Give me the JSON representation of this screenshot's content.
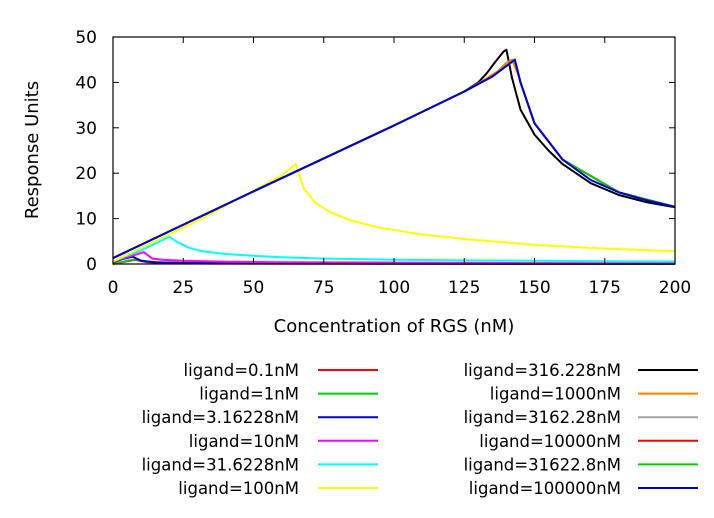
{
  "chart_data": {
    "type": "line",
    "xlabel": "Concentration of RGS (nM)",
    "ylabel": "Response Units",
    "xlim": [
      0,
      200
    ],
    "ylim": [
      0,
      50
    ],
    "xticks": [
      "0",
      "25",
      "50",
      "75",
      "100",
      "125",
      "150",
      "175",
      "200"
    ],
    "yticks": [
      "0",
      "10",
      "20",
      "30",
      "40",
      "50"
    ],
    "grid": false,
    "legend_position": "bottom, two columns",
    "series": [
      {
        "name": "ligand=0.1nM",
        "color": "#ff0000",
        "x": [
          0,
          5,
          8,
          12,
          20,
          30,
          50,
          100,
          150,
          200
        ],
        "y": [
          0,
          0.6,
          0.9,
          0.4,
          0.2,
          0.12,
          0.08,
          0.04,
          0.03,
          0.02
        ]
      },
      {
        "name": "ligand=1nM",
        "color": "#00d000",
        "x": [
          0,
          5,
          8,
          12,
          20,
          30,
          50,
          100,
          150,
          200
        ],
        "y": [
          0,
          0.7,
          1.0,
          0.5,
          0.25,
          0.15,
          0.1,
          0.05,
          0.03,
          0.03
        ]
      },
      {
        "name": "ligand=3.16228nM",
        "color": "#0000cc",
        "x": [
          0,
          4,
          7,
          10,
          15,
          25,
          50,
          100,
          150,
          200
        ],
        "y": [
          0.4,
          1.2,
          1.6,
          0.7,
          0.4,
          0.25,
          0.15,
          0.08,
          0.05,
          0.04
        ]
      },
      {
        "name": "ligand=10nM",
        "color": "#ff00ff",
        "x": [
          0,
          5,
          11,
          14,
          18,
          25,
          40,
          60,
          100,
          150,
          200
        ],
        "y": [
          0.5,
          1.5,
          2.6,
          1.2,
          0.9,
          0.7,
          0.5,
          0.4,
          0.3,
          0.2,
          0.15
        ]
      },
      {
        "name": "ligand=31.6228nM",
        "color": "#00ffff",
        "x": [
          0,
          10,
          20,
          23,
          27,
          32,
          40,
          50,
          60,
          75,
          100,
          125,
          150,
          175,
          200
        ],
        "y": [
          0.6,
          3.0,
          6.0,
          4.8,
          3.6,
          2.8,
          2.2,
          1.8,
          1.5,
          1.2,
          0.95,
          0.8,
          0.7,
          0.6,
          0.55
        ]
      },
      {
        "name": "ligand=100nM",
        "color": "#ffff00",
        "x": [
          0,
          30,
          60,
          65,
          68,
          72,
          77,
          85,
          95,
          110,
          125,
          150,
          175,
          200
        ],
        "y": [
          0.6,
          9.5,
          19.5,
          22.0,
          16.5,
          13.5,
          11.5,
          9.5,
          8.0,
          6.5,
          5.5,
          4.2,
          3.4,
          2.8
        ]
      },
      {
        "name": "ligand=316.228nM",
        "color": "#000000",
        "x": [
          0,
          50,
          100,
          125,
          130,
          133,
          136,
          139,
          140,
          142,
          145,
          150,
          155,
          160,
          170,
          180,
          190,
          200
        ],
        "y": [
          1.3,
          16.0,
          30.5,
          38.0,
          40.0,
          42.0,
          44.5,
          46.8,
          47.2,
          41.0,
          34.0,
          28.5,
          25.0,
          22.0,
          17.8,
          15.2,
          13.6,
          12.5
        ]
      },
      {
        "name": "ligand=1000nM",
        "color": "#ff7f00",
        "x": [
          0,
          50,
          100,
          125,
          132,
          137,
          140,
          142,
          144,
          150,
          160,
          180,
          200
        ],
        "y": [
          1.3,
          16.0,
          30.5,
          38.0,
          40.5,
          42.5,
          44.3,
          45.0,
          42.0,
          31.0,
          23.0,
          15.8,
          12.6
        ]
      },
      {
        "name": "ligand=3162.28nM",
        "color": "#a0a0a0",
        "x": [
          0,
          50,
          100,
          125,
          135,
          143,
          145,
          150,
          160,
          180,
          200
        ],
        "y": [
          1.3,
          16.0,
          30.5,
          38.0,
          41.3,
          45.0,
          40.0,
          31.0,
          23.0,
          15.8,
          12.6
        ]
      },
      {
        "name": "ligand=10000nM",
        "color": "#ff0000",
        "x": [
          0,
          50,
          100,
          125,
          135,
          143,
          145,
          150,
          160,
          180,
          200
        ],
        "y": [
          1.3,
          16.0,
          30.5,
          38.0,
          41.3,
          45.0,
          40.0,
          31.0,
          23.0,
          15.8,
          12.6
        ]
      },
      {
        "name": "ligand=31622.8nM",
        "color": "#00d000",
        "x": [
          0,
          50,
          100,
          125,
          135,
          143,
          145,
          150,
          160,
          180,
          200
        ],
        "y": [
          1.3,
          16.0,
          30.5,
          38.0,
          41.3,
          45.0,
          40.0,
          31.0,
          23.0,
          15.8,
          12.6
        ]
      },
      {
        "name": "ligand=100000nM",
        "color": "#0000cc",
        "x": [
          0,
          50,
          100,
          125,
          135,
          143,
          145,
          150,
          160,
          170,
          180,
          190,
          200
        ],
        "y": [
          1.3,
          16.0,
          30.5,
          38.0,
          41.3,
          45.0,
          40.0,
          31.0,
          23.0,
          18.5,
          15.8,
          14.0,
          12.6
        ]
      }
    ]
  }
}
